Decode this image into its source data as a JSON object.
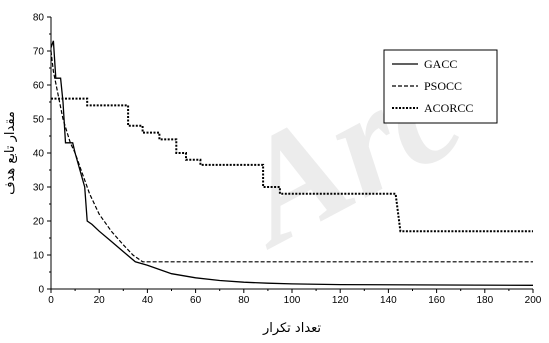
{
  "chart_data": {
    "type": "line",
    "xlabel": "تعداد تکرار",
    "ylabel": "مقدار تابع هدف",
    "xlim": [
      0,
      200
    ],
    "ylim": [
      0,
      80
    ],
    "x_ticks": [
      0,
      20,
      40,
      60,
      80,
      100,
      120,
      140,
      160,
      180,
      200
    ],
    "y_ticks": [
      0,
      10,
      20,
      30,
      40,
      50,
      60,
      70,
      80
    ],
    "grid": false,
    "legend_position": "top-right",
    "watermark": "Arc",
    "series": [
      {
        "name": "GACC",
        "style": "solid",
        "points": [
          [
            0,
            71
          ],
          [
            1,
            73
          ],
          [
            2,
            62
          ],
          [
            4,
            62
          ],
          [
            5,
            55
          ],
          [
            6,
            43
          ],
          [
            9,
            43
          ],
          [
            10,
            40
          ],
          [
            12,
            35
          ],
          [
            14,
            30
          ],
          [
            15,
            20
          ],
          [
            17,
            19
          ],
          [
            20,
            17
          ],
          [
            25,
            14
          ],
          [
            30,
            11
          ],
          [
            35,
            8
          ],
          [
            40,
            7
          ],
          [
            50,
            4.5
          ],
          [
            60,
            3.3
          ],
          [
            70,
            2.5
          ],
          [
            80,
            2
          ],
          [
            90,
            1.7
          ],
          [
            100,
            1.5
          ],
          [
            120,
            1.3
          ],
          [
            150,
            1.2
          ],
          [
            200,
            1.1
          ]
        ]
      },
      {
        "name": "PSOCC",
        "style": "dashed",
        "points": [
          [
            0,
            70
          ],
          [
            1,
            64
          ],
          [
            3,
            57
          ],
          [
            5,
            50
          ],
          [
            8,
            43
          ],
          [
            10,
            40
          ],
          [
            13,
            34
          ],
          [
            16,
            28
          ],
          [
            20,
            22
          ],
          [
            25,
            17
          ],
          [
            30,
            13
          ],
          [
            34,
            10
          ],
          [
            36,
            9
          ],
          [
            38,
            8
          ],
          [
            200,
            8
          ]
        ]
      },
      {
        "name": "ACORCC",
        "style": "dotted",
        "points": [
          [
            0,
            56
          ],
          [
            15,
            56
          ],
          [
            15,
            54
          ],
          [
            32,
            54
          ],
          [
            32,
            48
          ],
          [
            38,
            48
          ],
          [
            38,
            46
          ],
          [
            45,
            46
          ],
          [
            45,
            44
          ],
          [
            52,
            44
          ],
          [
            52,
            40
          ],
          [
            56,
            40
          ],
          [
            56,
            38
          ],
          [
            62,
            38
          ],
          [
            62,
            36.5
          ],
          [
            88,
            36.5
          ],
          [
            88,
            30
          ],
          [
            95,
            30
          ],
          [
            95,
            28
          ],
          [
            143,
            28
          ],
          [
            145,
            17
          ],
          [
            200,
            17
          ]
        ]
      }
    ]
  }
}
